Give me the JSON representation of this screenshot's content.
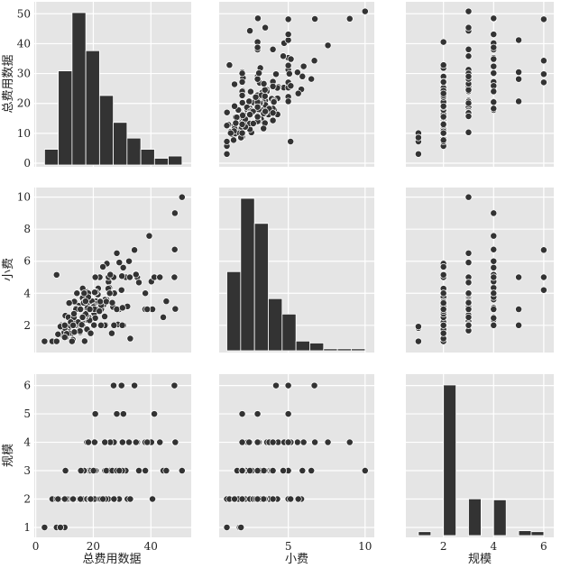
{
  "chart_data": {
    "type": "scatter",
    "title": "",
    "variables": [
      {
        "key": "total_bill",
        "label": "总费用数据",
        "lim": [
          -0.5,
          54
        ],
        "ticks": [
          0,
          20,
          40
        ],
        "yticks": [
          0,
          10,
          20,
          30,
          40,
          50
        ],
        "ylim": [
          -1.2,
          54
        ]
      },
      {
        "key": "tip",
        "label": "小费",
        "lim": [
          0.5,
          10.6
        ],
        "ticks": [
          5,
          10
        ],
        "yticks": [
          2,
          4,
          6,
          8,
          10
        ],
        "ylim": [
          0.3,
          10.6
        ]
      },
      {
        "key": "size",
        "label": "规模",
        "lim": [
          0.5,
          6.4
        ],
        "ticks": [
          2,
          4,
          6
        ],
        "yticks": [
          1,
          2,
          3,
          4,
          5,
          6
        ],
        "ylim": [
          0.65,
          6.4
        ]
      }
    ],
    "histograms": [
      {
        "variable": "total_bill",
        "bin_start": 3.07,
        "bin_width": 4.774,
        "counts": [
          7,
          42,
          68,
          51,
          31,
          19,
          12,
          7,
          3,
          4
        ]
      },
      {
        "variable": "tip",
        "bin_start": 1.0,
        "bin_width": 0.9,
        "counts": [
          41,
          79,
          66,
          27,
          19,
          5,
          4,
          1,
          1,
          1
        ]
      },
      {
        "variable": "size",
        "bin_start": 1.0,
        "bin_width": 0.5,
        "counts": [
          4,
          0,
          156,
          0,
          38,
          0,
          37,
          0,
          5,
          4
        ]
      }
    ],
    "points_columns": [
      "total_bill",
      "tip",
      "size"
    ],
    "points": [
      [
        16.99,
        1.01,
        2
      ],
      [
        10.34,
        1.66,
        3
      ],
      [
        21.01,
        3.5,
        3
      ],
      [
        23.68,
        3.31,
        2
      ],
      [
        24.59,
        3.61,
        4
      ],
      [
        25.29,
        4.71,
        4
      ],
      [
        8.77,
        2.0,
        2
      ],
      [
        26.88,
        3.12,
        4
      ],
      [
        15.04,
        1.96,
        2
      ],
      [
        14.78,
        3.23,
        2
      ],
      [
        10.27,
        1.71,
        2
      ],
      [
        35.26,
        5.0,
        4
      ],
      [
        15.42,
        1.57,
        2
      ],
      [
        18.43,
        3.0,
        4
      ],
      [
        14.83,
        3.02,
        2
      ],
      [
        21.58,
        3.92,
        2
      ],
      [
        10.33,
        1.67,
        3
      ],
      [
        16.29,
        3.71,
        3
      ],
      [
        16.97,
        3.5,
        3
      ],
      [
        20.65,
        3.35,
        3
      ],
      [
        17.92,
        4.08,
        2
      ],
      [
        20.29,
        2.75,
        2
      ],
      [
        15.77,
        2.23,
        2
      ],
      [
        39.42,
        7.58,
        4
      ],
      [
        19.82,
        3.18,
        2
      ],
      [
        17.81,
        2.34,
        4
      ],
      [
        13.37,
        2.0,
        2
      ],
      [
        12.69,
        2.0,
        2
      ],
      [
        21.7,
        4.3,
        2
      ],
      [
        19.65,
        3.0,
        2
      ],
      [
        9.55,
        1.45,
        2
      ],
      [
        18.35,
        2.5,
        4
      ],
      [
        15.06,
        3.0,
        2
      ],
      [
        20.69,
        2.45,
        4
      ],
      [
        17.78,
        3.27,
        2
      ],
      [
        24.06,
        3.6,
        3
      ],
      [
        16.31,
        2.0,
        3
      ],
      [
        16.93,
        3.07,
        3
      ],
      [
        18.69,
        2.31,
        3
      ],
      [
        31.27,
        5.0,
        3
      ],
      [
        16.04,
        2.24,
        3
      ],
      [
        17.46,
        2.54,
        2
      ],
      [
        13.94,
        3.06,
        2
      ],
      [
        9.68,
        1.32,
        2
      ],
      [
        30.4,
        5.6,
        4
      ],
      [
        18.29,
        3.0,
        2
      ],
      [
        22.23,
        5.0,
        2
      ],
      [
        32.4,
        6.0,
        4
      ],
      [
        28.55,
        2.05,
        3
      ],
      [
        18.04,
        3.0,
        2
      ],
      [
        12.54,
        2.5,
        2
      ],
      [
        10.29,
        2.6,
        2
      ],
      [
        34.81,
        5.2,
        4
      ],
      [
        9.94,
        1.56,
        2
      ],
      [
        25.56,
        4.34,
        4
      ],
      [
        19.49,
        3.51,
        2
      ],
      [
        38.01,
        3.0,
        4
      ],
      [
        26.41,
        1.5,
        2
      ],
      [
        11.24,
        1.76,
        2
      ],
      [
        48.27,
        6.73,
        4
      ],
      [
        20.29,
        3.21,
        2
      ],
      [
        13.81,
        2.0,
        2
      ],
      [
        11.02,
        1.98,
        2
      ],
      [
        18.29,
        3.76,
        4
      ],
      [
        17.59,
        2.64,
        3
      ],
      [
        20.08,
        3.15,
        3
      ],
      [
        16.45,
        2.47,
        2
      ],
      [
        3.07,
        1.0,
        1
      ],
      [
        20.23,
        2.01,
        2
      ],
      [
        15.01,
        2.09,
        2
      ],
      [
        12.02,
        1.97,
        2
      ],
      [
        17.07,
        3.0,
        3
      ],
      [
        26.86,
        3.14,
        2
      ],
      [
        25.28,
        5.0,
        2
      ],
      [
        14.73,
        2.2,
        2
      ],
      [
        10.51,
        1.25,
        2
      ],
      [
        17.92,
        3.08,
        2
      ],
      [
        27.2,
        4.0,
        4
      ],
      [
        22.76,
        3.0,
        2
      ],
      [
        17.29,
        2.71,
        2
      ],
      [
        19.44,
        3.0,
        2
      ],
      [
        16.66,
        3.4,
        2
      ],
      [
        10.07,
        1.83,
        1
      ],
      [
        32.68,
        5.0,
        2
      ],
      [
        15.98,
        2.03,
        2
      ],
      [
        34.83,
        5.17,
        4
      ],
      [
        13.03,
        2.0,
        2
      ],
      [
        18.28,
        4.0,
        2
      ],
      [
        24.71,
        5.85,
        2
      ],
      [
        21.16,
        3.0,
        2
      ],
      [
        28.97,
        3.0,
        2
      ],
      [
        22.49,
        3.5,
        2
      ],
      [
        5.75,
        1.0,
        2
      ],
      [
        16.32,
        4.3,
        2
      ],
      [
        22.75,
        3.25,
        2
      ],
      [
        40.17,
        4.73,
        4
      ],
      [
        27.28,
        4.0,
        2
      ],
      [
        12.03,
        1.5,
        2
      ],
      [
        21.01,
        3.0,
        2
      ],
      [
        12.46,
        1.5,
        2
      ],
      [
        11.35,
        2.5,
        2
      ],
      [
        15.38,
        3.0,
        2
      ],
      [
        44.3,
        2.5,
        3
      ],
      [
        22.42,
        3.48,
        2
      ],
      [
        20.92,
        4.08,
        2
      ],
      [
        15.36,
        1.64,
        2
      ],
      [
        20.49,
        4.06,
        2
      ],
      [
        25.21,
        4.29,
        2
      ],
      [
        18.24,
        3.76,
        2
      ],
      [
        14.31,
        4.0,
        2
      ],
      [
        14.0,
        3.0,
        2
      ],
      [
        7.25,
        1.0,
        1
      ],
      [
        38.07,
        4.0,
        3
      ],
      [
        23.95,
        2.55,
        2
      ],
      [
        25.71,
        4.0,
        3
      ],
      [
        17.31,
        3.5,
        2
      ],
      [
        29.93,
        5.07,
        4
      ],
      [
        50.81,
        10.0,
        3
      ],
      [
        48.33,
        9.0,
        4
      ],
      [
        7.25,
        5.15,
        2
      ],
      [
        34.3,
        6.7,
        6
      ],
      [
        27.05,
        5.0,
        6
      ],
      [
        29.8,
        4.2,
        6
      ],
      [
        48.17,
        5.0,
        6
      ],
      [
        41.19,
        5.0,
        5
      ],
      [
        20.69,
        5.0,
        5
      ],
      [
        30.46,
        2.0,
        5
      ],
      [
        28.15,
        3.0,
        5
      ],
      [
        43.11,
        5.0,
        4
      ],
      [
        45.35,
        3.5,
        3
      ],
      [
        40.55,
        3.0,
        2
      ],
      [
        48.47,
        3.02,
        4
      ],
      [
        8.58,
        1.92,
        1
      ],
      [
        32.83,
        1.17,
        2
      ],
      [
        35.83,
        4.67,
        3
      ],
      [
        29.03,
        5.92,
        3
      ],
      [
        31.85,
        3.18,
        2
      ],
      [
        24.52,
        3.48,
        3
      ],
      [
        16.82,
        4.0,
        3
      ],
      [
        26.59,
        3.41,
        3
      ],
      [
        38.73,
        3.0,
        4
      ],
      [
        24.27,
        2.03,
        2
      ],
      [
        12.76,
        2.23,
        2
      ],
      [
        30.06,
        2.0,
        3
      ],
      [
        25.89,
        5.16,
        4
      ],
      [
        13.27,
        2.5,
        2
      ],
      [
        28.17,
        6.5,
        3
      ],
      [
        12.9,
        1.1,
        2
      ],
      [
        28.15,
        3.0,
        5
      ],
      [
        11.59,
        1.5,
        2
      ],
      [
        7.74,
        1.44,
        2
      ],
      [
        30.14,
        3.09,
        4
      ],
      [
        12.16,
        2.2,
        2
      ],
      [
        13.42,
        3.48,
        2
      ],
      [
        8.58,
        1.92,
        1
      ],
      [
        15.98,
        3.0,
        2
      ],
      [
        13.42,
        1.58,
        2
      ],
      [
        16.27,
        2.5,
        2
      ],
      [
        10.09,
        2.0,
        2
      ],
      [
        20.45,
        3.0,
        4
      ],
      [
        13.28,
        2.72,
        2
      ],
      [
        22.12,
        2.88,
        2
      ],
      [
        24.01,
        2.0,
        4
      ],
      [
        15.69,
        3.0,
        3
      ],
      [
        11.61,
        3.39,
        2
      ],
      [
        10.77,
        1.47,
        2
      ],
      [
        15.53,
        3.0,
        2
      ],
      [
        10.07,
        1.25,
        2
      ],
      [
        12.6,
        1.0,
        2
      ],
      [
        32.83,
        1.17,
        2
      ],
      [
        35.83,
        4.67,
        3
      ],
      [
        29.03,
        5.92,
        3
      ],
      [
        27.18,
        2.0,
        2
      ],
      [
        22.67,
        2.0,
        2
      ],
      [
        17.82,
        1.75,
        2
      ],
      [
        18.78,
        3.0,
        2
      ],
      [
        23.33,
        5.65,
        2
      ],
      [
        43.11,
        5.0,
        4
      ],
      [
        13.0,
        2.0,
        2
      ],
      [
        19.08,
        1.5,
        2
      ]
    ]
  }
}
